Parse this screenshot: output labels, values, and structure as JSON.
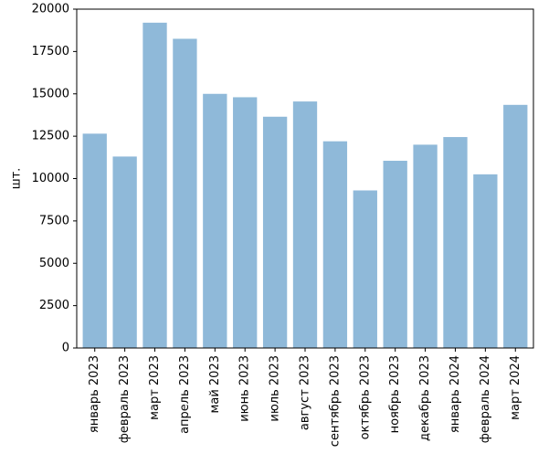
{
  "chart_data": {
    "type": "bar",
    "title": "",
    "xlabel": "",
    "ylabel": "шт.",
    "categories": [
      "январь 2023",
      "февраль 2023",
      "март 2023",
      "апрель 2023",
      "май 2023",
      "июнь 2023",
      "июль 2023",
      "август 2023",
      "сентябрь 2023",
      "октябрь 2023",
      "ноябрь 2023",
      "декабрь 2023",
      "январь 2024",
      "февраль 2024",
      "март 2024"
    ],
    "values": [
      12650,
      11300,
      19200,
      18250,
      15000,
      14800,
      13650,
      14550,
      12200,
      9300,
      11050,
      12000,
      12450,
      10250,
      14350
    ],
    "ylim": [
      0,
      20000
    ],
    "yticks": [
      0,
      2500,
      5000,
      7500,
      10000,
      12500,
      15000,
      17500,
      20000
    ],
    "bar_color": "#8fb9d9",
    "grid": false,
    "legend": "none"
  }
}
